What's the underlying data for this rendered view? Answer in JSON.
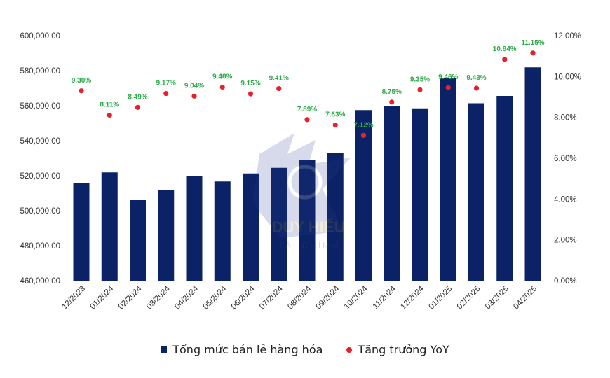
{
  "chart_data": {
    "type": "bar",
    "categories": [
      "12/2023",
      "01/2024",
      "02/2024",
      "03/2024",
      "04/2024",
      "05/2024",
      "06/2024",
      "07/2024",
      "08/2024",
      "09/2024",
      "10/2024",
      "11/2024",
      "12/2024",
      "01/2025",
      "02/2025",
      "03/2025",
      "04/2025"
    ],
    "series": [
      {
        "name": "Tổng mức bán lẻ hàng hóa",
        "type": "bar",
        "axis": "left",
        "color": "#0b2266",
        "values": [
          516000,
          521900,
          506300,
          511800,
          520000,
          516700,
          521300,
          524500,
          529000,
          533000,
          557500,
          560000,
          558500,
          575800,
          561400,
          565600,
          581900
        ]
      },
      {
        "name": "Tăng trưởng YoY",
        "type": "scatter",
        "axis": "right",
        "color": "#e8202a",
        "values": [
          9.3,
          8.11,
          8.49,
          9.17,
          9.04,
          9.48,
          9.15,
          9.41,
          7.89,
          7.63,
          7.12,
          8.75,
          9.35,
          9.46,
          9.43,
          10.84,
          11.15
        ],
        "labels": [
          "9.30%",
          "8.11%",
          "8.49%",
          "9.17%",
          "9.04%",
          "9.48%",
          "9.15%",
          "9.41%",
          "7.89%",
          "7.63%",
          "7.12%",
          "8.75%",
          "9.35%",
          "9.46%",
          "9.43%",
          "10.84%",
          "11.15%"
        ]
      }
    ],
    "y_left": {
      "ylim": [
        460000,
        600000
      ],
      "ticks": [
        460000,
        480000,
        500000,
        520000,
        540000,
        560000,
        580000,
        600000
      ],
      "tick_labels": [
        "460,000.00",
        "480,000.00",
        "500,000.00",
        "520,000.00",
        "540,000.00",
        "560,000.00",
        "580,000.00",
        "600,000.00"
      ]
    },
    "y_right": {
      "ylim": [
        0,
        12
      ],
      "ticks": [
        0,
        2,
        4,
        6,
        8,
        10,
        12
      ],
      "tick_labels": [
        "0.00%",
        "2.00%",
        "4.00%",
        "6.00%",
        "8.00%",
        "10.00%",
        "12.00%"
      ]
    },
    "label_color": "#2eaa4a",
    "grid": false,
    "legend_position": "bottom"
  },
  "watermark": {
    "title": "DUY HIẾU",
    "subtitle": "TÀI CHÍNH"
  }
}
